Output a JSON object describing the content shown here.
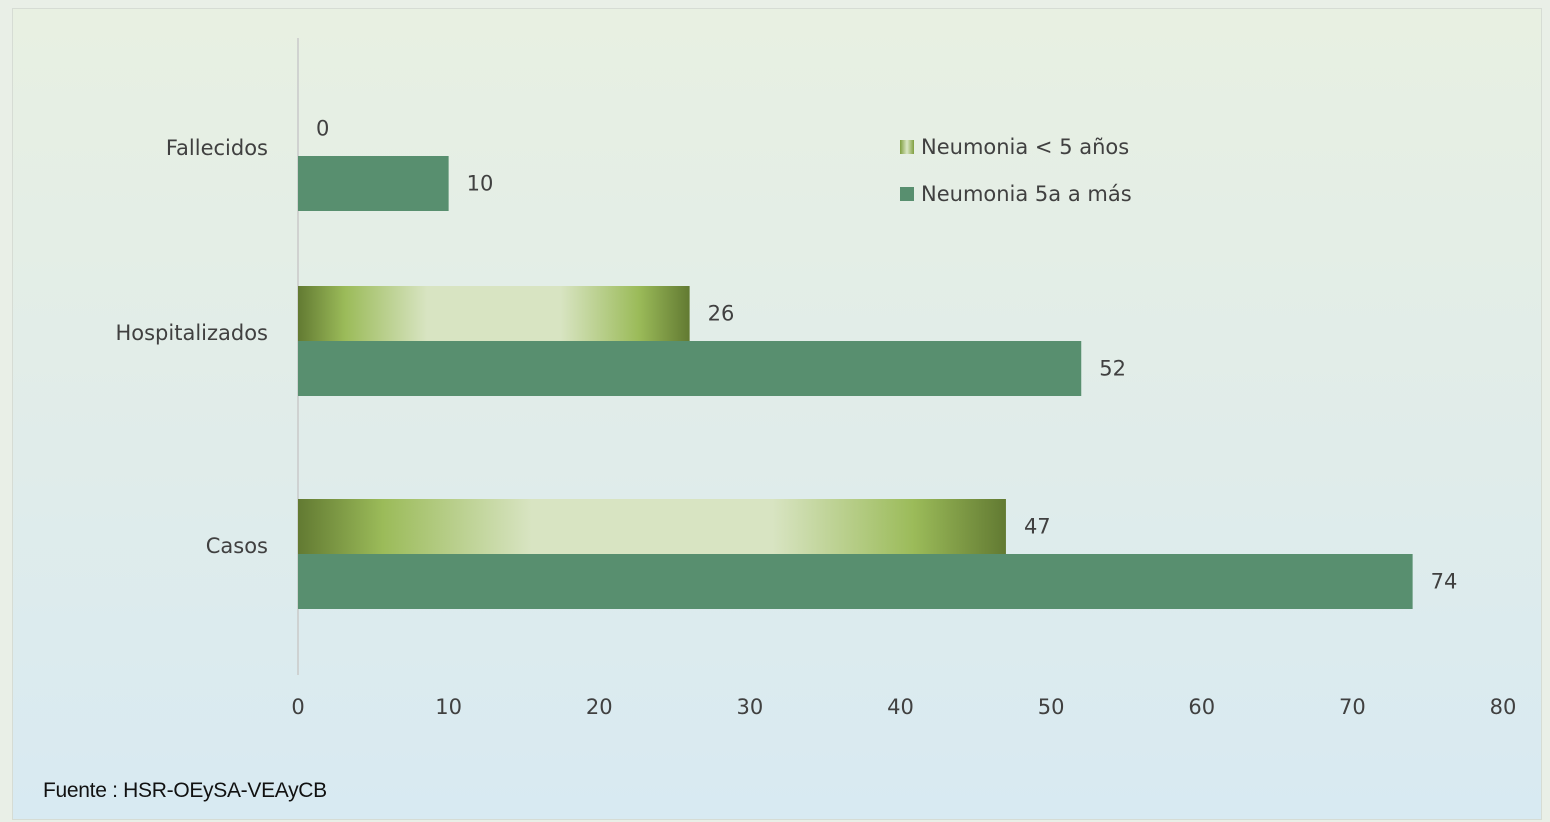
{
  "chart_data": {
    "type": "bar",
    "orientation": "horizontal",
    "categories": [
      "Fallecidos",
      "Hospitalizados",
      "Casos"
    ],
    "series": [
      {
        "name": "Neumonia < 5 años",
        "values": [
          0,
          26,
          47
        ],
        "color": "#9bbb59"
      },
      {
        "name": "Neumonia 5a a más",
        "values": [
          10,
          52,
          74
        ],
        "color": "#588f6f"
      }
    ],
    "xlim": [
      0,
      80
    ],
    "xticks": [
      "0",
      "10",
      "20",
      "30",
      "40",
      "50",
      "60",
      "70",
      "80"
    ],
    "data_labels": true,
    "grid": false,
    "legend_placement": "top-right"
  },
  "source": "Fuente : HSR-OEySA-VEAyCB"
}
